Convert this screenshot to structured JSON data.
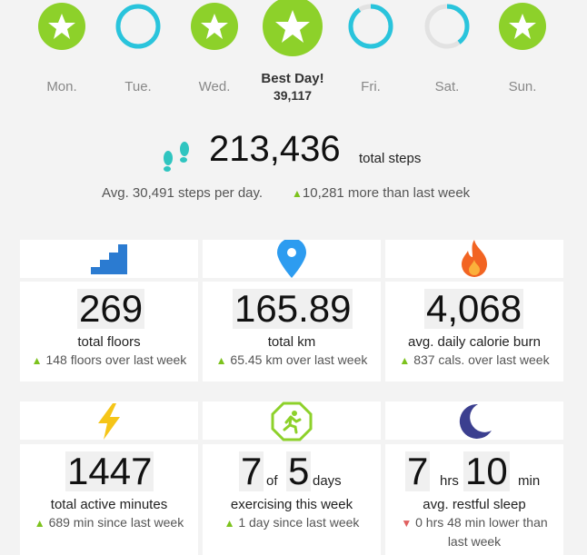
{
  "week": {
    "days": [
      {
        "label": "Mon.",
        "status": "star"
      },
      {
        "label": "Tue.",
        "status": "ring"
      },
      {
        "label": "Wed.",
        "status": "star"
      },
      {
        "label": "Best Day!",
        "value": "39,117",
        "status": "best"
      },
      {
        "label": "Fri.",
        "status": "ring"
      },
      {
        "label": "Sat.",
        "status": "partial"
      },
      {
        "label": "Sun.",
        "status": "star"
      }
    ]
  },
  "steps": {
    "total": "213,436",
    "unit": "total steps",
    "avg": "Avg. 30,491 steps per day.",
    "more": "10,281 more than last week"
  },
  "stats": {
    "floors": {
      "value": "269",
      "label": "total floors",
      "change": "148 floors over last week",
      "icon": "stairs-icon"
    },
    "km": {
      "value": "165.89",
      "label": "total km",
      "change": "65.45 km over last week",
      "icon": "location-pin-icon"
    },
    "calories": {
      "value": "4,068",
      "label": "avg. daily calorie burn",
      "change": "837 cals. over last week",
      "icon": "flame-icon"
    },
    "active": {
      "value": "1447",
      "label": "total active minutes",
      "change": "689 min since last week",
      "icon": "lightning-icon"
    },
    "exercise": {
      "value": "7",
      "of": "of",
      "total": "5",
      "unit": "days",
      "label": "exercising this week",
      "change": "1 day since last week",
      "icon": "running-person-icon"
    },
    "sleep": {
      "hours": "7",
      "hrs_unit": "hrs",
      "minutes": "10",
      "min_unit": "min",
      "label": "avg. restful sleep",
      "change_line1": "0 hrs 48 min lower than",
      "change_line2": "last week",
      "icon": "moon-icon"
    }
  },
  "colors": {
    "green": "#8dd12a",
    "teal": "#29c4dc",
    "orange": "#f26422",
    "blue": "#2b7bd1",
    "yellow": "#f5c518"
  }
}
